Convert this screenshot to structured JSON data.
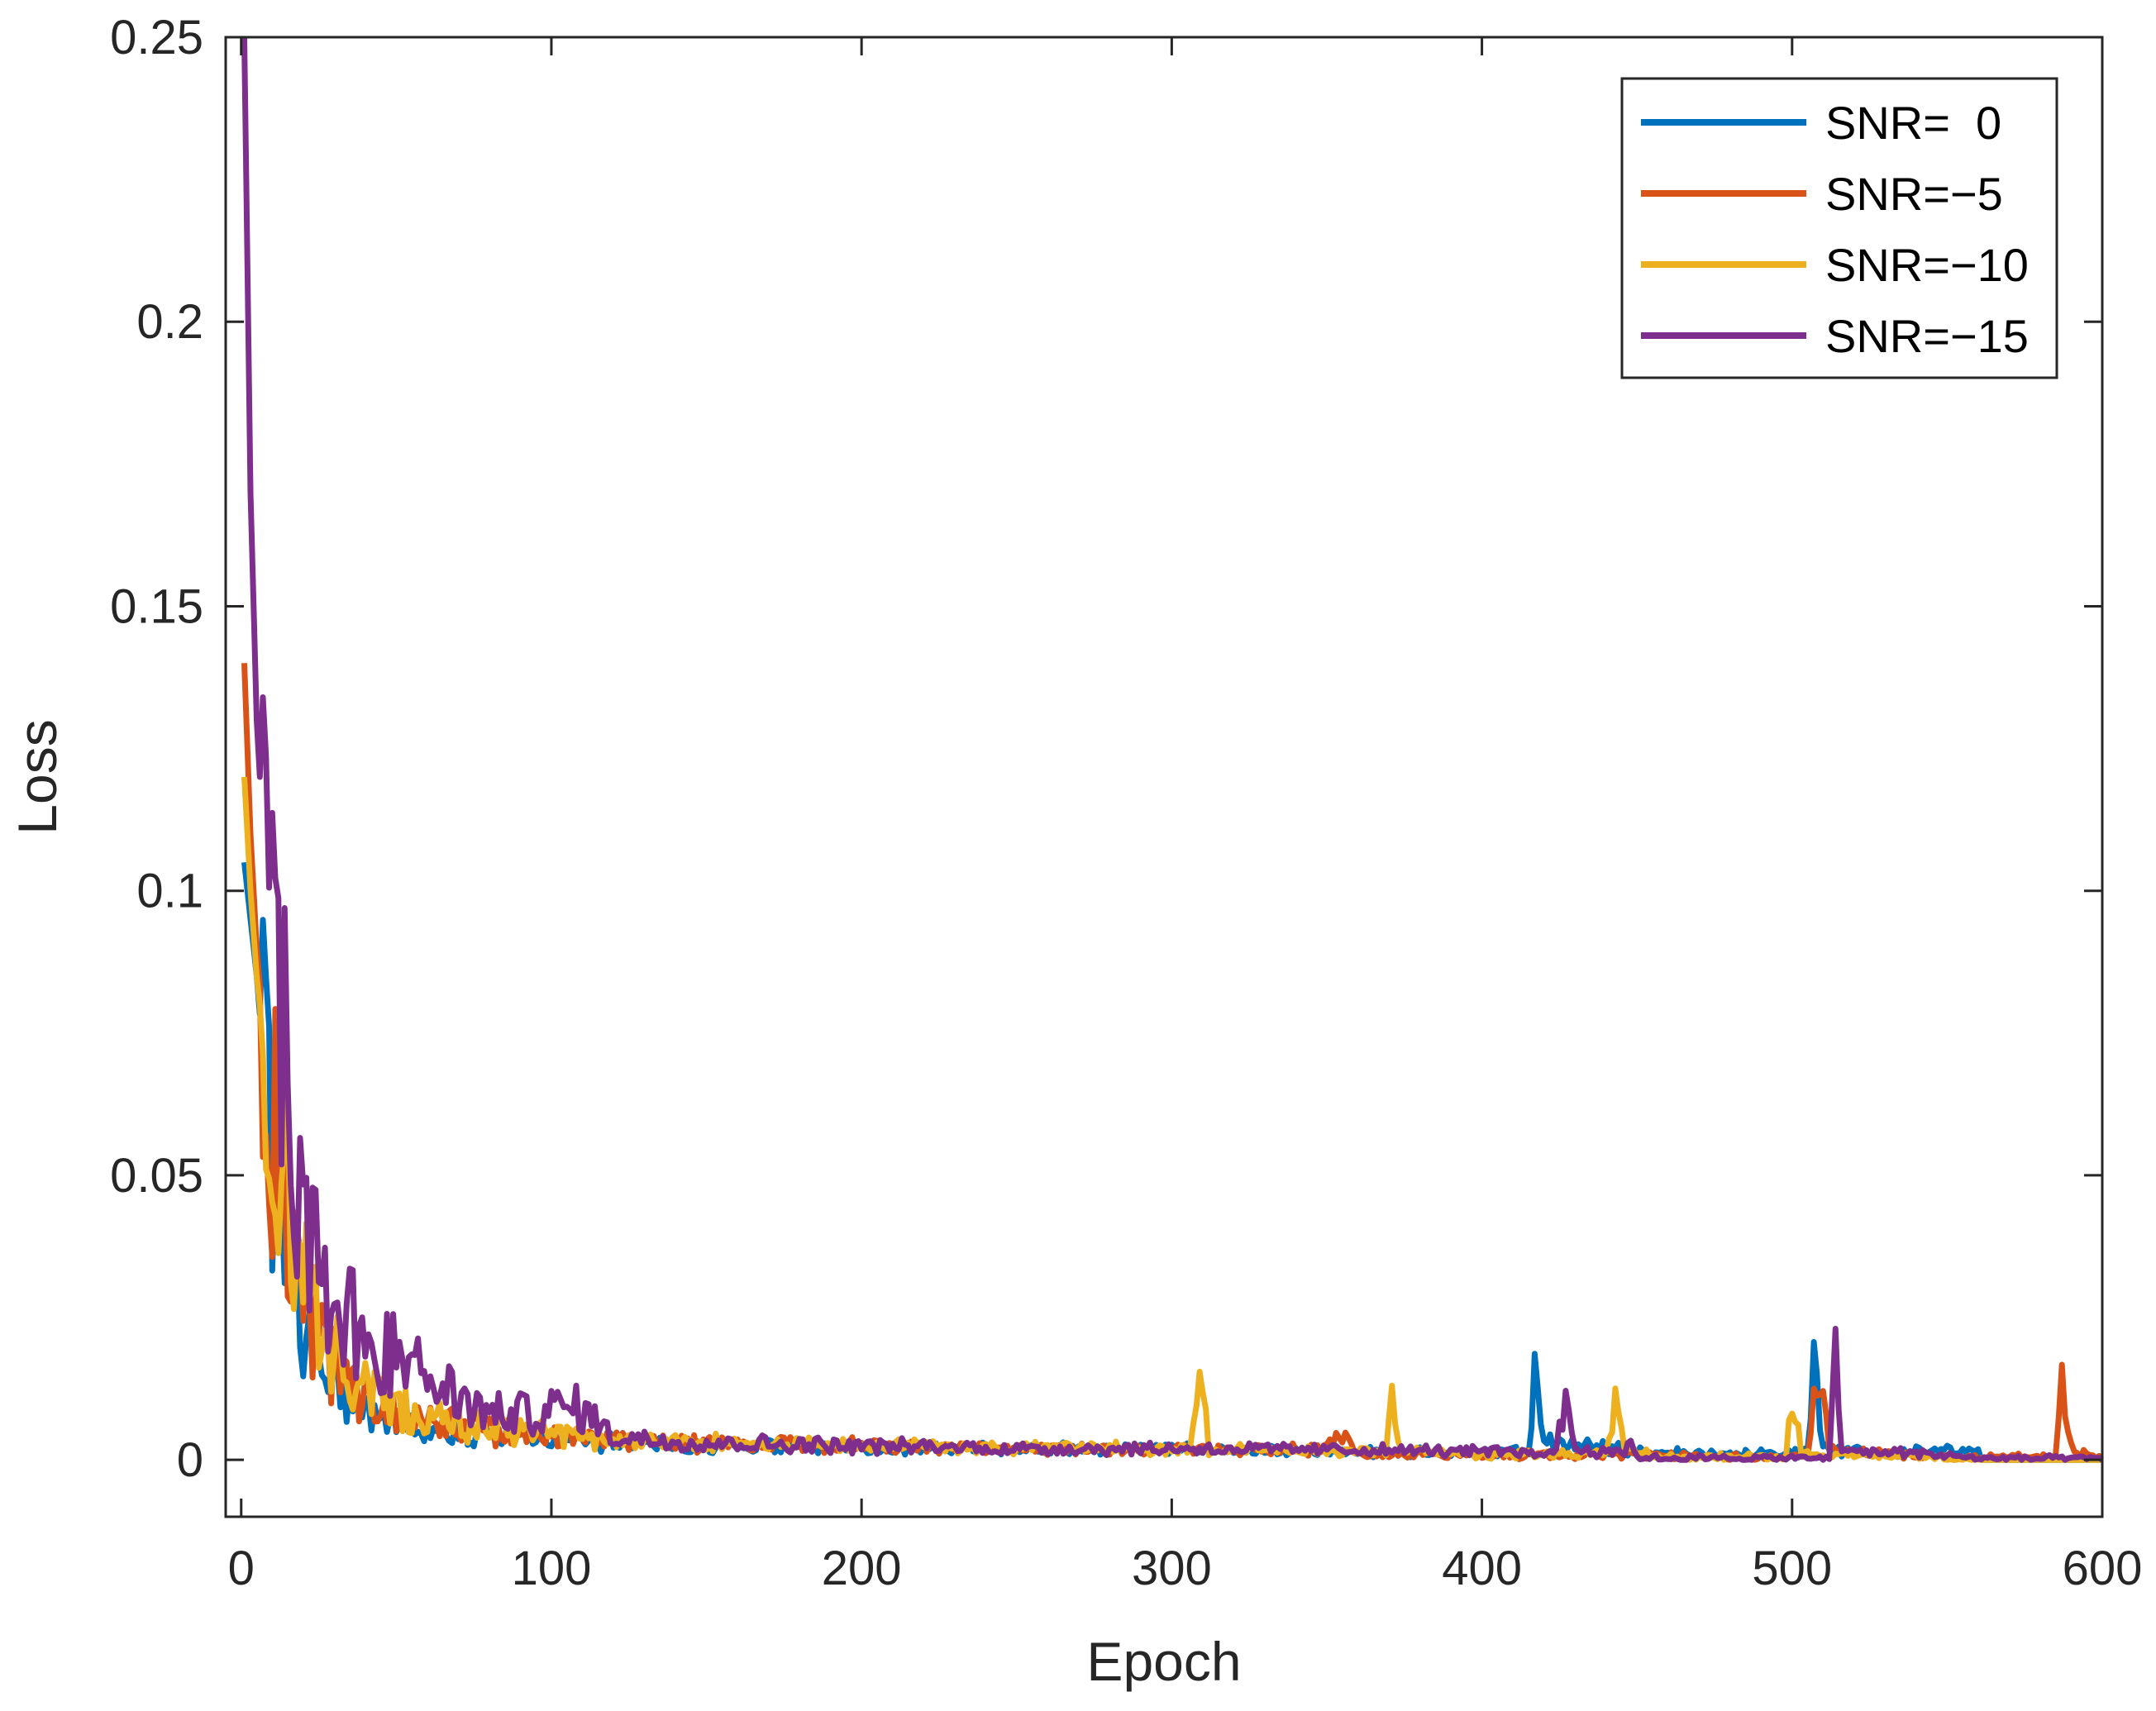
{
  "chart_data": {
    "type": "line",
    "xlabel": "Epoch",
    "ylabel": "Loss",
    "xlim": [
      -5,
      600
    ],
    "ylim": [
      -0.01,
      0.25
    ],
    "xticks": [
      0,
      100,
      200,
      300,
      400,
      500,
      600
    ],
    "xtick_labels": [
      "0",
      "100",
      "200",
      "300",
      "400",
      "500",
      "600"
    ],
    "yticks": [
      0,
      0.05,
      0.1,
      0.15,
      0.2,
      0.25
    ],
    "ytick_labels": [
      "0",
      "0.05",
      "0.1",
      "0.15",
      "0.2",
      "0.25"
    ],
    "grid": false,
    "legend_position": "top-right",
    "series": [
      {
        "name": "SNR=  0",
        "color": "#0072BD",
        "end_epoch": 560,
        "x": [
          1,
          3,
          5,
          8,
          10,
          15,
          20,
          25,
          30,
          40,
          50,
          60,
          70,
          80,
          90,
          100,
          120,
          150,
          200,
          250,
          300,
          350,
          400,
          415,
          417,
          420,
          450,
          480,
          500,
          505,
          507,
          510,
          540,
          560
        ],
        "y": [
          0.105,
          0.095,
          0.085,
          0.065,
          0.055,
          0.038,
          0.026,
          0.018,
          0.013,
          0.009,
          0.0065,
          0.0055,
          0.005,
          0.0045,
          0.004,
          0.0035,
          0.003,
          0.0025,
          0.002,
          0.002,
          0.0018,
          0.0015,
          0.0012,
          0.0015,
          0.018,
          0.003,
          0.0015,
          0.001,
          0.0012,
          0.0015,
          0.015,
          0.002,
          0.0015,
          0.0015
        ]
      },
      {
        "name": "SNR=−5",
        "color": "#D95319",
        "end_epoch": 600,
        "x": [
          1,
          3,
          5,
          8,
          10,
          15,
          20,
          25,
          30,
          40,
          50,
          60,
          70,
          80,
          90,
          100,
          120,
          150,
          200,
          250,
          300,
          350,
          354,
          360,
          400,
          450,
          480,
          500,
          505,
          508,
          512,
          540,
          560,
          580,
          585,
          587,
          590,
          600
        ],
        "y": [
          0.14,
          0.11,
          0.09,
          0.07,
          0.06,
          0.04,
          0.028,
          0.02,
          0.016,
          0.011,
          0.0085,
          0.007,
          0.006,
          0.005,
          0.0045,
          0.0042,
          0.0035,
          0.003,
          0.0025,
          0.002,
          0.0018,
          0.0018,
          0.005,
          0.001,
          0.001,
          0.0008,
          0.0005,
          0.0005,
          0.001,
          0.02,
          0.002,
          0.0008,
          0.0005,
          0.0005,
          0.0005,
          0.015,
          0.002,
          0.0003
        ]
      },
      {
        "name": "SNR=−10",
        "color": "#EDB120",
        "end_epoch": 560,
        "x": [
          1,
          3,
          5,
          8,
          10,
          15,
          20,
          25,
          30,
          40,
          50,
          60,
          70,
          80,
          90,
          100,
          120,
          150,
          200,
          250,
          300,
          306,
          309,
          312,
          350,
          369,
          371,
          374,
          400,
          440,
          443,
          446,
          455,
          460,
          495,
          498,
          500,
          503,
          540,
          560
        ],
        "y": [
          0.12,
          0.1,
          0.085,
          0.07,
          0.062,
          0.045,
          0.032,
          0.024,
          0.018,
          0.012,
          0.009,
          0.0075,
          0.0065,
          0.0055,
          0.005,
          0.0045,
          0.0035,
          0.003,
          0.0025,
          0.0022,
          0.002,
          0.002,
          0.016,
          0.002,
          0.0015,
          0.0015,
          0.009,
          0.0015,
          0.001,
          0.0012,
          0.01,
          0.002,
          0.0008,
          0.0005,
          0.0005,
          0.0005,
          0.013,
          0.001,
          0.0005,
          0.0003
        ]
      },
      {
        "name": "SNR=−15",
        "color": "#7E2F8E",
        "end_epoch": 600,
        "x": [
          1,
          3,
          5,
          8,
          10,
          15,
          20,
          25,
          30,
          40,
          50,
          60,
          70,
          80,
          90,
          100,
          110,
          120,
          150,
          200,
          250,
          300,
          350,
          400,
          424,
          427,
          430,
          446,
          448,
          450,
          460,
          500,
          512,
          514,
          516,
          540,
          560,
          600
        ],
        "y": [
          0.25,
          0.17,
          0.13,
          0.1,
          0.09,
          0.068,
          0.05,
          0.035,
          0.027,
          0.022,
          0.018,
          0.014,
          0.011,
          0.008,
          0.008,
          0.009,
          0.009,
          0.004,
          0.003,
          0.0025,
          0.002,
          0.002,
          0.0018,
          0.0015,
          0.0012,
          0.012,
          0.002,
          0.0012,
          0.004,
          0.0005,
          0.0003,
          0.0003,
          0.0003,
          0.018,
          0.0015,
          0.0012,
          0.0003,
          0.0002
        ]
      }
    ]
  }
}
